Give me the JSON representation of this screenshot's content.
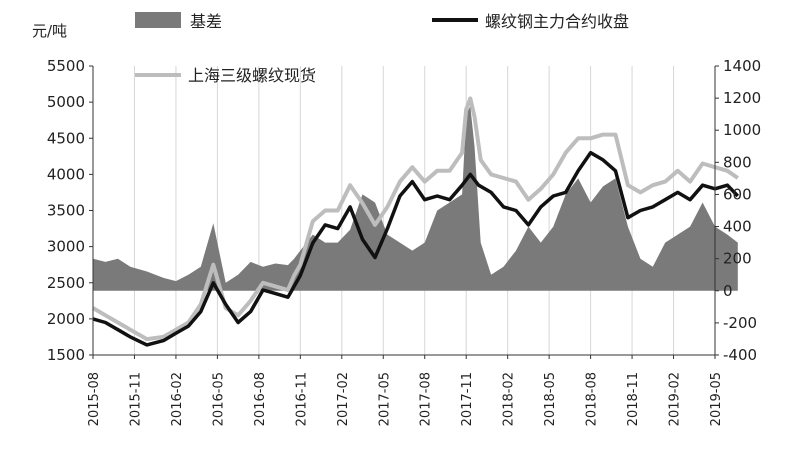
{
  "chart_data": {
    "type": "line",
    "unit_label": "元/吨",
    "left_axis": {
      "min": 1500,
      "max": 5500,
      "ticks": [
        1500,
        2000,
        2500,
        3000,
        3500,
        4000,
        4500,
        5000,
        5500
      ]
    },
    "right_axis": {
      "min": -400,
      "max": 1400,
      "ticks": [
        -400,
        -200,
        0,
        200,
        400,
        600,
        800,
        1000,
        1200,
        1400
      ]
    },
    "x_ticks": [
      "2015-08",
      "2015-11",
      "2016-02",
      "2016-05",
      "2016-08",
      "2016-11",
      "2017-02",
      "2017-05",
      "2017-08",
      "2017-11",
      "2018-02",
      "2018-05",
      "2018-08",
      "2018-11",
      "2019-02",
      "2019-05"
    ],
    "legend": [
      {
        "key": "basis",
        "label": "基差",
        "style": "area"
      },
      {
        "key": "futures",
        "label": "螺纹钢主力合约收盘",
        "style": "line"
      },
      {
        "key": "spot",
        "label": "上海三级螺纹现货",
        "style": "line"
      }
    ],
    "colors": {
      "basis": "#7a7a7a",
      "futures": "#111111",
      "spot": "#bdbdbd"
    },
    "series": [
      {
        "name": "螺纹钢主力合约收盘",
        "key": "futures",
        "axis": "left",
        "x": [
          0,
          0.3,
          0.6,
          0.9,
          1.3,
          1.7,
          2.0,
          2.3,
          2.6,
          2.9,
          3.2,
          3.5,
          3.8,
          4.1,
          4.4,
          4.7,
          4.85,
          5.0,
          5.3,
          5.6,
          5.9,
          6.2,
          6.5,
          6.8,
          7.1,
          7.4,
          7.7,
          8.0,
          8.3,
          8.6,
          8.9,
          9.1,
          9.3,
          9.6,
          9.9,
          10.2,
          10.5,
          10.8,
          11.1,
          11.4,
          11.7,
          12.0,
          12.3,
          12.6,
          12.9,
          13.2,
          13.5,
          13.8,
          14.1,
          14.4,
          14.7,
          15.0,
          15.3,
          15.55
        ],
        "y": [
          2000,
          1950,
          1850,
          1750,
          1640,
          1700,
          1800,
          1900,
          2100,
          2500,
          2200,
          1950,
          2100,
          2400,
          2350,
          2300,
          2450,
          2600,
          3050,
          3300,
          3250,
          3550,
          3100,
          2850,
          3250,
          3700,
          3900,
          3650,
          3700,
          3650,
          3850,
          4000,
          3850,
          3750,
          3550,
          3500,
          3300,
          3550,
          3700,
          3750,
          4050,
          4300,
          4200,
          4050,
          3400,
          3500,
          3550,
          3650,
          3750,
          3650,
          3850,
          3800,
          3850,
          3700
        ]
      },
      {
        "name": "上海三级螺纹现货",
        "key": "spot",
        "axis": "left",
        "x": [
          0,
          0.3,
          0.6,
          0.9,
          1.3,
          1.7,
          2.0,
          2.3,
          2.6,
          2.9,
          3.2,
          3.5,
          3.8,
          4.1,
          4.4,
          4.7,
          4.85,
          5.0,
          5.3,
          5.6,
          5.9,
          6.2,
          6.5,
          6.8,
          7.1,
          7.4,
          7.7,
          8.0,
          8.3,
          8.6,
          8.9,
          9.0,
          9.1,
          9.2,
          9.35,
          9.6,
          9.9,
          10.2,
          10.5,
          10.8,
          11.1,
          11.4,
          11.7,
          12.0,
          12.3,
          12.6,
          12.9,
          13.2,
          13.5,
          13.8,
          14.1,
          14.4,
          14.7,
          15.0,
          15.3,
          15.55
        ],
        "y": [
          2150,
          2050,
          1950,
          1850,
          1720,
          1750,
          1850,
          1950,
          2200,
          2750,
          2150,
          2050,
          2250,
          2500,
          2450,
          2400,
          2600,
          2750,
          3350,
          3500,
          3500,
          3850,
          3600,
          3300,
          3550,
          3900,
          4100,
          3900,
          4050,
          4050,
          4300,
          4900,
          5050,
          4800,
          4200,
          4000,
          3950,
          3900,
          3650,
          3800,
          4000,
          4300,
          4500,
          4500,
          4550,
          4550,
          3850,
          3750,
          3850,
          3900,
          4050,
          3900,
          4150,
          4100,
          4050,
          3950
        ]
      },
      {
        "name": "基差",
        "key": "basis",
        "axis": "right",
        "x": [
          0,
          0.3,
          0.6,
          0.9,
          1.3,
          1.7,
          2.0,
          2.3,
          2.6,
          2.9,
          3.2,
          3.5,
          3.8,
          4.1,
          4.4,
          4.7,
          4.85,
          5.0,
          5.3,
          5.6,
          5.9,
          6.2,
          6.5,
          6.8,
          7.1,
          7.4,
          7.7,
          8.0,
          8.3,
          8.6,
          8.9,
          9.0,
          9.1,
          9.2,
          9.35,
          9.6,
          9.9,
          10.2,
          10.5,
          10.8,
          11.1,
          11.4,
          11.7,
          12.0,
          12.3,
          12.6,
          12.9,
          13.2,
          13.5,
          13.8,
          14.1,
          14.4,
          14.7,
          15.0,
          15.3,
          15.55
        ],
        "y": [
          200,
          180,
          200,
          150,
          120,
          80,
          60,
          100,
          150,
          420,
          50,
          100,
          180,
          150,
          170,
          160,
          200,
          250,
          350,
          300,
          300,
          380,
          600,
          550,
          350,
          300,
          250,
          300,
          500,
          550,
          600,
          1100,
          1150,
          900,
          300,
          100,
          150,
          250,
          400,
          300,
          400,
          600,
          700,
          550,
          650,
          700,
          400,
          200,
          150,
          300,
          350,
          400,
          550,
          400,
          350,
          300
        ]
      }
    ]
  }
}
